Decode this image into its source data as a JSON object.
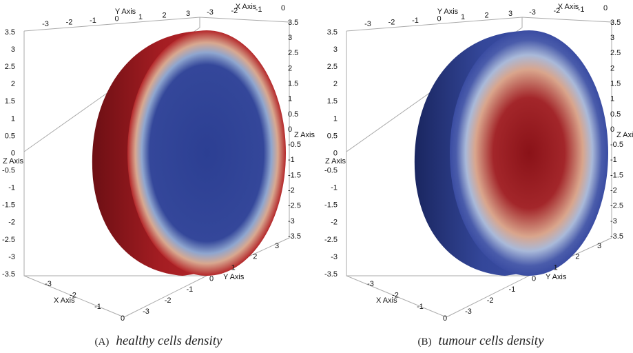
{
  "panels": [
    {
      "label": "(A)",
      "caption": "healthy cells density",
      "axes": {
        "top_y": {
          "title": "Y Axis",
          "ticks": [
            "-3",
            "-2",
            "-1",
            "0",
            "1",
            "2",
            "3"
          ]
        },
        "top_x": {
          "title": "X Axis",
          "ticks": [
            "-3",
            "-2",
            "-1",
            "0"
          ]
        },
        "left_z": {
          "title": "Z Axis",
          "ticks": [
            "3.5",
            "3",
            "2.5",
            "2",
            "1.5",
            "1",
            "0.5",
            "0",
            "-0.5",
            "-1",
            "-1.5",
            "-2",
            "-2.5",
            "-3",
            "-3.5"
          ]
        },
        "right_z": {
          "title": "Z Axis",
          "ticks": [
            "3.5",
            "3",
            "2.5",
            "2",
            "1.5",
            "1",
            "0.5",
            "0",
            "-0.5",
            "-1",
            "-1.5",
            "-2",
            "-2.5",
            "-3",
            "-3.5"
          ]
        },
        "bottom_y": {
          "title": "Y Axis",
          "ticks": [
            "3",
            "2",
            "1",
            "0",
            "-1",
            "-2",
            "-3"
          ]
        },
        "bottom_x": {
          "title": "X Axis",
          "ticks": [
            "-3",
            "-2",
            "-1",
            "0"
          ]
        }
      }
    },
    {
      "label": "(B)",
      "caption": "tumour cells density",
      "axes": {
        "top_y": {
          "title": "Y Axis",
          "ticks": [
            "-3",
            "-2",
            "-1",
            "0",
            "1",
            "2",
            "3"
          ]
        },
        "top_x": {
          "title": "X Axis",
          "ticks": [
            "-3",
            "-2",
            "-1",
            "0"
          ]
        },
        "left_z": {
          "title": "Z Axis",
          "ticks": [
            "3.5",
            "3",
            "2.5",
            "2",
            "1.5",
            "1",
            "0.5",
            "0",
            "-0.5",
            "-1",
            "-1.5",
            "-2",
            "-2.5",
            "-3",
            "-3.5"
          ]
        },
        "right_z": {
          "title": "Z Axis",
          "ticks": [
            "3.5",
            "3",
            "2.5",
            "2",
            "1.5",
            "1",
            "0.5",
            "0",
            "-0.5",
            "-1",
            "-1.5",
            "-2",
            "-2.5",
            "-3",
            "-3.5"
          ]
        },
        "bottom_y": {
          "title": "Y Axis",
          "ticks": [
            "3",
            "2",
            "1",
            "0",
            "-1",
            "-2",
            "-3"
          ]
        },
        "bottom_x": {
          "title": "X Axis",
          "ticks": [
            "-3",
            "-2",
            "-1",
            "0"
          ]
        }
      }
    }
  ]
}
